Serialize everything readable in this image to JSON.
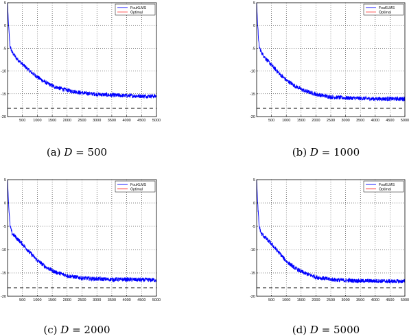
{
  "chart_data": [
    {
      "type": "line",
      "caption_label": "(a)",
      "caption_var": "D",
      "caption_eq": "=",
      "caption_value": "500",
      "xlim": [
        0,
        5000
      ],
      "ylim": [
        -20,
        5
      ],
      "x_ticks": [
        500,
        1000,
        1500,
        2000,
        2500,
        3000,
        3500,
        4000,
        4500,
        5000
      ],
      "y_ticks": [
        5,
        0,
        -5,
        -10,
        -15,
        -20
      ],
      "grid": true,
      "legend_position": "top-right",
      "series": [
        {
          "name": "FouKLMS",
          "color": "#0000ff",
          "style": "solid",
          "x": [
            0,
            30,
            80,
            150,
            300,
            500,
            800,
            1000,
            1300,
            1600,
            2000,
            2500,
            3000,
            3500,
            4000,
            4500,
            5000
          ],
          "y": [
            5,
            0.5,
            -4.5,
            -5.8,
            -7.2,
            -8.5,
            -10.3,
            -11.3,
            -12.6,
            -13.5,
            -14.2,
            -14.8,
            -15.1,
            -15.3,
            -15.4,
            -15.5,
            -15.5
          ]
        },
        {
          "name": "Optimal",
          "color": "#ff0000",
          "style": "solid",
          "x": [],
          "y": []
        },
        {
          "name": "",
          "color": "#000000",
          "style": "dashed",
          "x": [
            0,
            5000
          ],
          "y": [
            -18.2,
            -18.2
          ]
        }
      ]
    },
    {
      "type": "line",
      "caption_label": "(b)",
      "caption_var": "D",
      "caption_eq": "=",
      "caption_value": "1000",
      "xlim": [
        0,
        5000
      ],
      "ylim": [
        -20,
        5
      ],
      "x_ticks": [
        500,
        1000,
        1500,
        2000,
        2500,
        3000,
        3500,
        4000,
        4500,
        5000
      ],
      "y_ticks": [
        5,
        0,
        -5,
        -10,
        -15,
        -20
      ],
      "grid": true,
      "legend_position": "top-right",
      "series": [
        {
          "name": "FouKLMS",
          "color": "#0000ff",
          "style": "solid",
          "x": [
            0,
            30,
            80,
            150,
            300,
            500,
            800,
            1000,
            1300,
            1600,
            2000,
            2500,
            3000,
            3500,
            4000,
            4500,
            5000
          ],
          "y": [
            5,
            0.5,
            -4.5,
            -5.8,
            -7.2,
            -8.7,
            -10.8,
            -12.0,
            -13.3,
            -14.3,
            -15.1,
            -15.7,
            -15.9,
            -16.0,
            -16.1,
            -16.1,
            -16.1
          ]
        },
        {
          "name": "Optimal",
          "color": "#ff0000",
          "style": "solid",
          "x": [],
          "y": []
        },
        {
          "name": "",
          "color": "#000000",
          "style": "dashed",
          "x": [
            0,
            5000
          ],
          "y": [
            -18.2,
            -18.2
          ]
        }
      ]
    },
    {
      "type": "line",
      "caption_label": "(c)",
      "caption_var": "D",
      "caption_eq": "=",
      "caption_value": "2000",
      "xlim": [
        0,
        5000
      ],
      "ylim": [
        -20,
        5
      ],
      "x_ticks": [
        500,
        1000,
        1500,
        2000,
        2500,
        3000,
        3500,
        4000,
        4500,
        5000
      ],
      "y_ticks": [
        5,
        0,
        -5,
        -10,
        -15,
        -20
      ],
      "grid": true,
      "legend_position": "top-right",
      "series": [
        {
          "name": "FouKLMS",
          "color": "#0000ff",
          "style": "solid",
          "x": [
            0,
            30,
            80,
            150,
            300,
            500,
            800,
            1000,
            1300,
            1600,
            2000,
            2500,
            3000,
            3500,
            4000,
            4500,
            5000
          ],
          "y": [
            5,
            0.5,
            -4.8,
            -6.5,
            -7.5,
            -8.8,
            -11.0,
            -12.3,
            -13.8,
            -14.8,
            -15.6,
            -16.1,
            -16.3,
            -16.4,
            -16.4,
            -16.5,
            -16.5
          ]
        },
        {
          "name": "Optimal",
          "color": "#ff0000",
          "style": "solid",
          "x": [],
          "y": []
        },
        {
          "name": "",
          "color": "#000000",
          "style": "dashed",
          "x": [
            0,
            5000
          ],
          "y": [
            -18.2,
            -18.2
          ]
        }
      ]
    },
    {
      "type": "line",
      "caption_label": "(d)",
      "caption_var": "D",
      "caption_eq": "=",
      "caption_value": "5000",
      "xlim": [
        0,
        5000
      ],
      "ylim": [
        -20,
        5
      ],
      "x_ticks": [
        500,
        1000,
        1500,
        2000,
        2500,
        3000,
        3500,
        4000,
        4500,
        5000
      ],
      "y_ticks": [
        5,
        0,
        -5,
        -10,
        -15,
        -20
      ],
      "grid": true,
      "legend_position": "top-right",
      "series": [
        {
          "name": "FouKLMS",
          "color": "#0000ff",
          "style": "solid",
          "x": [
            0,
            30,
            80,
            150,
            300,
            500,
            800,
            1000,
            1300,
            1600,
            2000,
            2500,
            3000,
            3500,
            4000,
            4500,
            5000
          ],
          "y": [
            5,
            0.5,
            -4.8,
            -6.5,
            -7.5,
            -8.8,
            -11.0,
            -12.5,
            -14.0,
            -15.0,
            -15.9,
            -16.4,
            -16.6,
            -16.7,
            -16.7,
            -16.8,
            -16.8
          ]
        },
        {
          "name": "Optimal",
          "color": "#ff0000",
          "style": "solid",
          "x": [],
          "y": []
        },
        {
          "name": "",
          "color": "#000000",
          "style": "dashed",
          "x": [
            0,
            5000
          ],
          "y": [
            -18.2,
            -18.2
          ]
        }
      ]
    }
  ]
}
